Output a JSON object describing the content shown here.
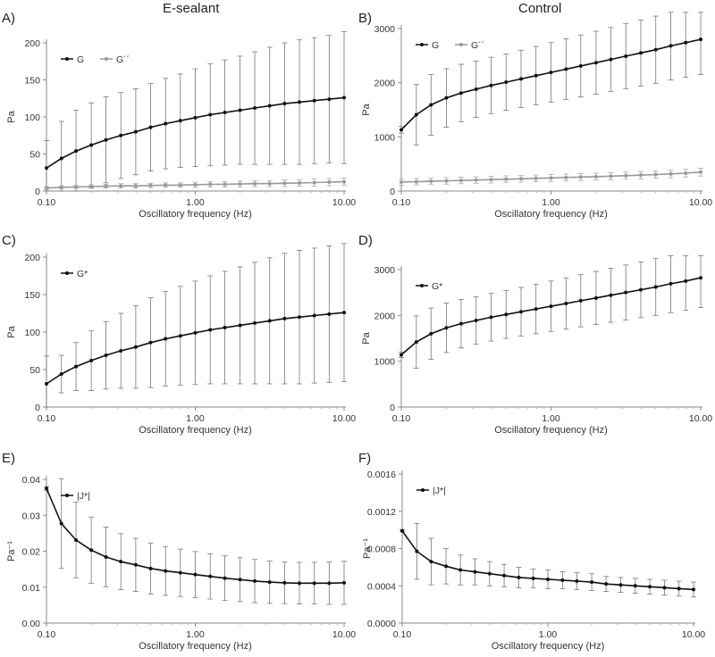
{
  "columns": {
    "left": "E-sealant",
    "right": "Control"
  },
  "panel_letters": [
    "A)",
    "B)",
    "C)",
    "D)",
    "E)",
    "F)"
  ],
  "chart_data": [
    {
      "id": "A",
      "type": "line",
      "xscale": "log",
      "xlabel": "Oscillatory frequency (Hz)",
      "ylabel": "Pa",
      "xlim": [
        0.1,
        10
      ],
      "ylim": [
        0,
        200
      ],
      "xticks": [
        0.1,
        1,
        10
      ],
      "xticklabels": [
        "0.10",
        "1.00",
        "10.00"
      ],
      "yticks": [
        0,
        50,
        100,
        150,
        200
      ],
      "yticklabels": [
        "0",
        "50",
        "100",
        "150",
        "200"
      ],
      "legend": "top-left",
      "series": [
        {
          "name": "G",
          "color": "#111111",
          "x": [
            0.1,
            0.126,
            0.158,
            0.2,
            0.251,
            0.316,
            0.398,
            0.501,
            0.631,
            0.794,
            1,
            1.26,
            1.58,
            2,
            2.51,
            3.16,
            3.98,
            5.01,
            6.31,
            7.94,
            10
          ],
          "y": [
            31,
            44,
            54,
            62,
            69,
            75,
            80,
            86,
            91,
            95,
            99,
            103,
            106,
            109,
            112,
            115,
            118,
            120,
            122,
            124,
            126
          ],
          "err": [
            37,
            50,
            55,
            57,
            58,
            58,
            58,
            59,
            61,
            63,
            66,
            69,
            71,
            73,
            76,
            79,
            82,
            84,
            85,
            86,
            89
          ]
        },
        {
          "name": "G´´",
          "color": "#999999",
          "x": [
            0.1,
            0.126,
            0.158,
            0.2,
            0.251,
            0.316,
            0.398,
            0.501,
            0.631,
            0.794,
            1,
            1.26,
            1.58,
            2,
            2.51,
            3.16,
            3.98,
            5.01,
            6.31,
            7.94,
            10
          ],
          "y": [
            4,
            5,
            5.5,
            6,
            6.5,
            7,
            7,
            7.5,
            8,
            8,
            8.5,
            9,
            9,
            9.5,
            10,
            10,
            10.5,
            11,
            11.5,
            12,
            12.5
          ],
          "err": [
            2,
            2,
            2,
            2.5,
            2.5,
            3,
            3,
            3,
            3,
            3,
            3.5,
            3.5,
            3.5,
            4,
            4,
            4,
            4.5,
            4.5,
            5,
            5,
            5
          ]
        }
      ]
    },
    {
      "id": "B",
      "type": "line",
      "xscale": "log",
      "xlabel": "Oscillatory frequency (Hz)",
      "ylabel": "Pa",
      "xlim": [
        0.1,
        10
      ],
      "ylim": [
        0,
        3000
      ],
      "xticks": [
        0.1,
        1,
        10
      ],
      "xticklabels": [
        "0.10",
        "1.00",
        "10.00"
      ],
      "yticks": [
        0,
        1000,
        2000,
        3000
      ],
      "yticklabels": [
        "0",
        "1000",
        "2000",
        "3000"
      ],
      "legend": "top-left",
      "series": [
        {
          "name": "G",
          "color": "#111111",
          "x": [
            0.1,
            0.126,
            0.158,
            0.2,
            0.251,
            0.316,
            0.398,
            0.501,
            0.631,
            0.794,
            1,
            1.26,
            1.58,
            2,
            2.51,
            3.16,
            3.98,
            5.01,
            6.31,
            7.94,
            10
          ],
          "y": [
            1130,
            1410,
            1590,
            1720,
            1810,
            1880,
            1950,
            2010,
            2070,
            2130,
            2190,
            2250,
            2310,
            2370,
            2430,
            2490,
            2550,
            2610,
            2680,
            2740,
            2800
          ],
          "err": [
            60,
            560,
            560,
            540,
            530,
            520,
            520,
            520,
            530,
            540,
            550,
            560,
            570,
            580,
            590,
            600,
            610,
            620,
            630,
            640,
            650
          ]
        },
        {
          "name": "G´´",
          "color": "#999999",
          "x": [
            0.1,
            0.126,
            0.158,
            0.2,
            0.251,
            0.316,
            0.398,
            0.501,
            0.631,
            0.794,
            1,
            1.26,
            1.58,
            2,
            2.51,
            3.16,
            3.98,
            5.01,
            6.31,
            7.94,
            10
          ],
          "y": [
            165,
            172,
            180,
            188,
            195,
            202,
            210,
            218,
            226,
            234,
            242,
            250,
            258,
            266,
            275,
            284,
            294,
            305,
            316,
            330,
            350
          ],
          "err": [
            60,
            60,
            60,
            60,
            60,
            60,
            62,
            62,
            62,
            62,
            64,
            64,
            64,
            64,
            66,
            66,
            68,
            68,
            70,
            70,
            72
          ]
        }
      ]
    },
    {
      "id": "C",
      "type": "line",
      "xscale": "log",
      "xlabel": "Oscillatory frequency (Hz)",
      "ylabel": "Pa",
      "xlim": [
        0.1,
        10
      ],
      "ylim": [
        0,
        200
      ],
      "xticks": [
        0.1,
        1,
        10
      ],
      "xticklabels": [
        "0.10",
        "1.00",
        "10.00"
      ],
      "yticks": [
        0,
        50,
        100,
        150,
        200
      ],
      "yticklabels": [
        "0",
        "50",
        "100",
        "150",
        "200"
      ],
      "legend": "top-left",
      "series": [
        {
          "name": "G*",
          "color": "#111111",
          "x": [
            0.1,
            0.126,
            0.158,
            0.2,
            0.251,
            0.316,
            0.398,
            0.501,
            0.631,
            0.794,
            1,
            1.26,
            1.58,
            2,
            2.51,
            3.16,
            3.98,
            5.01,
            6.31,
            7.94,
            10
          ],
          "y": [
            31,
            44,
            54,
            62,
            69,
            75,
            80,
            86,
            91,
            95,
            99,
            103,
            106,
            109,
            112,
            115,
            118,
            120,
            122,
            124,
            126
          ],
          "err": [
            37,
            25,
            32,
            40,
            45,
            50,
            55,
            60,
            63,
            66,
            69,
            72,
            75,
            78,
            81,
            84,
            87,
            89,
            90,
            91,
            92
          ]
        }
      ]
    },
    {
      "id": "D",
      "type": "line",
      "xscale": "log",
      "xlabel": "Oscillatory frequency (Hz)",
      "ylabel": "Pa",
      "xlim": [
        0.1,
        10
      ],
      "ylim": [
        0,
        3000
      ],
      "xticks": [
        0.1,
        1,
        10
      ],
      "xticklabels": [
        "0.10",
        "1.00",
        "10.00"
      ],
      "yticks": [
        0,
        1000,
        2000,
        3000
      ],
      "yticklabels": [
        "0",
        "1000",
        "2000",
        "3000"
      ],
      "legend": "top-left",
      "series": [
        {
          "name": "G*",
          "color": "#111111",
          "x": [
            0.1,
            0.126,
            0.158,
            0.2,
            0.251,
            0.316,
            0.398,
            0.501,
            0.631,
            0.794,
            1,
            1.26,
            1.58,
            2,
            2.51,
            3.16,
            3.98,
            5.01,
            6.31,
            7.94,
            10
          ],
          "y": [
            1140,
            1420,
            1600,
            1730,
            1820,
            1890,
            1960,
            2020,
            2080,
            2140,
            2200,
            2260,
            2320,
            2380,
            2440,
            2500,
            2560,
            2620,
            2690,
            2750,
            2820
          ],
          "err": [
            60,
            570,
            560,
            540,
            530,
            520,
            520,
            520,
            530,
            540,
            550,
            560,
            570,
            580,
            590,
            600,
            610,
            620,
            630,
            640,
            650
          ]
        }
      ]
    },
    {
      "id": "E",
      "type": "line",
      "xscale": "log",
      "xlabel": "Oscillatory frequency (Hz)",
      "ylabel": "Pa⁻¹",
      "xlim": [
        0.1,
        10
      ],
      "ylim": [
        0,
        0.04
      ],
      "xticks": [
        0.1,
        1,
        10
      ],
      "xticklabels": [
        "0.10",
        "1.00",
        "10.00"
      ],
      "yticks": [
        0,
        0.01,
        0.02,
        0.03,
        0.04
      ],
      "yticklabels": [
        "0.00",
        "0.01",
        "0.02",
        "0.03",
        "0.04"
      ],
      "legend": "top-left",
      "series": [
        {
          "name": "|J*|",
          "color": "#111111",
          "x": [
            0.1,
            0.126,
            0.158,
            0.2,
            0.251,
            0.316,
            0.398,
            0.501,
            0.631,
            0.794,
            1,
            1.26,
            1.58,
            2,
            2.51,
            3.16,
            3.98,
            5.01,
            6.31,
            7.94,
            10
          ],
          "y": [
            0.0375,
            0.0277,
            0.0231,
            0.0203,
            0.0184,
            0.0171,
            0.0162,
            0.0152,
            0.0145,
            0.014,
            0.0135,
            0.013,
            0.0125,
            0.0121,
            0.0117,
            0.0114,
            0.0112,
            0.0111,
            0.0111,
            0.0111,
            0.0112
          ],
          "err": [
            0.0005,
            0.0125,
            0.0105,
            0.0092,
            0.0083,
            0.0078,
            0.0074,
            0.0071,
            0.0068,
            0.0066,
            0.0064,
            0.0063,
            0.0062,
            0.0061,
            0.006,
            0.0059,
            0.0058,
            0.0058,
            0.0058,
            0.0059,
            0.006
          ]
        }
      ]
    },
    {
      "id": "F",
      "type": "line",
      "xscale": "log",
      "xlabel": "Oscillatory frequency (Hz)",
      "ylabel": "Pa⁻¹",
      "xlim": [
        0.1,
        10
      ],
      "ylim": [
        0,
        0.0016
      ],
      "xticks": [
        0.1,
        1,
        10
      ],
      "xticklabels": [
        "0.10",
        "1.00",
        "10.00"
      ],
      "yticks": [
        0,
        0.0004,
        0.0008,
        0.0012,
        0.0016
      ],
      "yticklabels": [
        "0.0000",
        "0.0004",
        "0.0008",
        "0.0012",
        "0.0016"
      ],
      "legend": "top-left",
      "series": [
        {
          "name": "|J*|",
          "color": "#111111",
          "x": [
            0.1,
            0.126,
            0.158,
            0.2,
            0.251,
            0.316,
            0.398,
            0.501,
            0.631,
            0.794,
            1,
            1.26,
            1.58,
            2,
            2.51,
            3.16,
            3.98,
            5.01,
            6.31,
            7.94,
            10
          ],
          "y": [
            0.00099,
            0.00077,
            0.00066,
            0.00061,
            0.00057,
            0.00055,
            0.00053,
            0.00051,
            0.00049,
            0.00048,
            0.00047,
            0.00046,
            0.00045,
            0.00044,
            0.00042,
            0.00041,
            0.0004,
            0.00039,
            0.00038,
            0.00037,
            0.00036
          ],
          "err": [
            1e-05,
            0.0003,
            0.00025,
            0.00019,
            0.00016,
            0.00014,
            0.00013,
            0.00012,
            0.00011,
            0.0001,
            0.0001,
            9e-05,
            9e-05,
            9e-05,
            8e-05,
            8e-05,
            8e-05,
            8e-05,
            8e-05,
            8e-05,
            8e-05
          ]
        }
      ]
    }
  ]
}
